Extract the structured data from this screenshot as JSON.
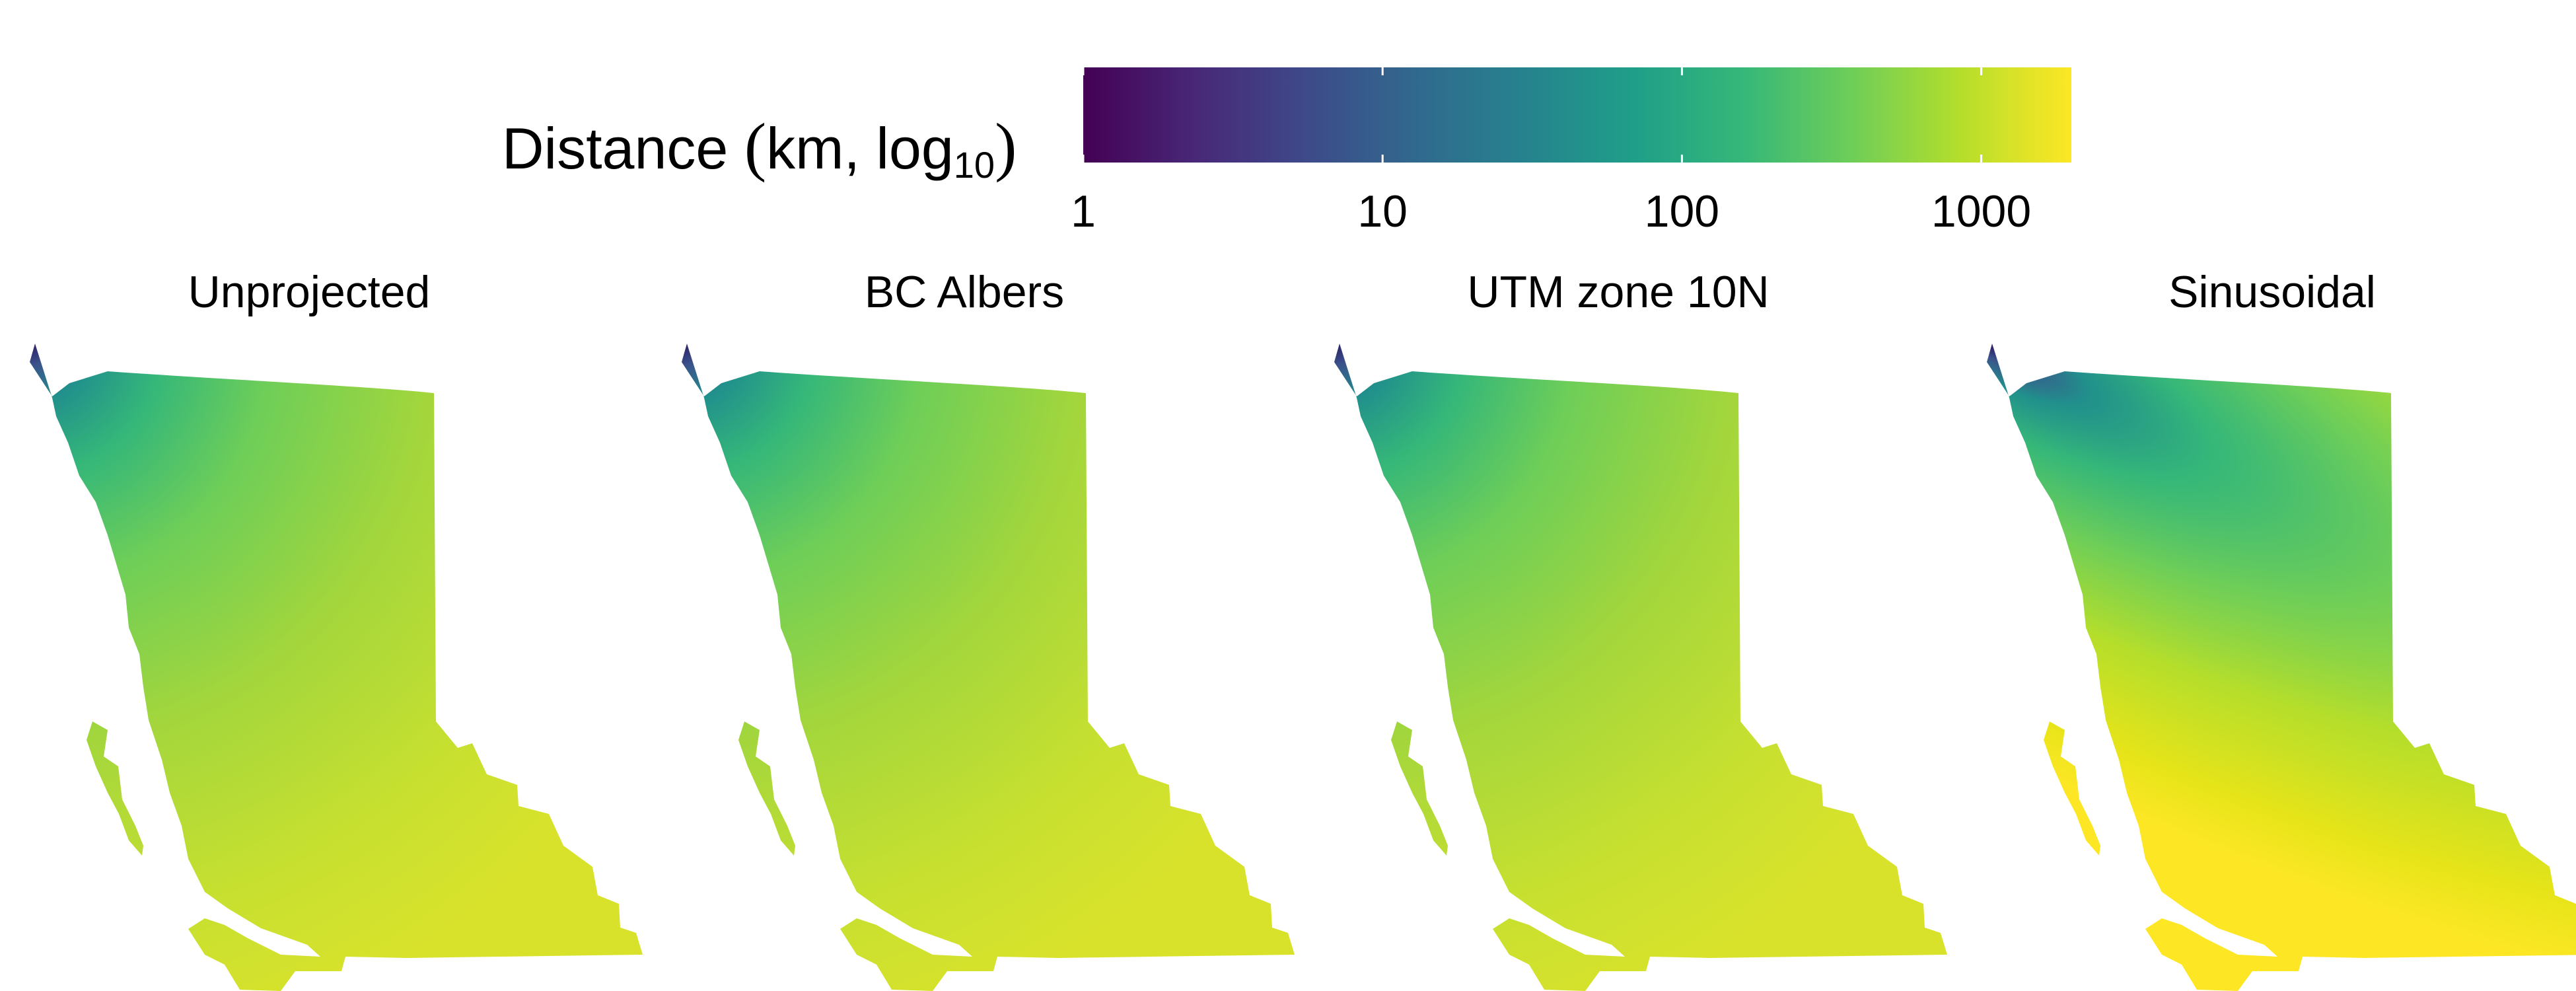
{
  "legend": {
    "title_prefix": "Distance",
    "title_open_paren": "(",
    "title_unit": "km, log",
    "title_subscript": "10",
    "title_close_paren": ")",
    "colormap": [
      "#440154",
      "#482777",
      "#3e4989",
      "#31688e",
      "#26828e",
      "#1f9e89",
      "#35b779",
      "#6ece58",
      "#b5de2b",
      "#fde725"
    ],
    "ticks": [
      {
        "label": "1",
        "value": 1
      },
      {
        "label": "10",
        "value": 10
      },
      {
        "label": "100",
        "value": 100
      },
      {
        "label": "1000",
        "value": 1000
      }
    ],
    "scale": "log10",
    "range": [
      1,
      2000
    ]
  },
  "panels": [
    {
      "title": "Unprojected",
      "distortion": "low"
    },
    {
      "title": "BC Albers",
      "distortion": "low"
    },
    {
      "title": "UTM zone 10N",
      "distortion": "low"
    },
    {
      "title": "Sinusoidal",
      "distortion": "high"
    }
  ]
}
